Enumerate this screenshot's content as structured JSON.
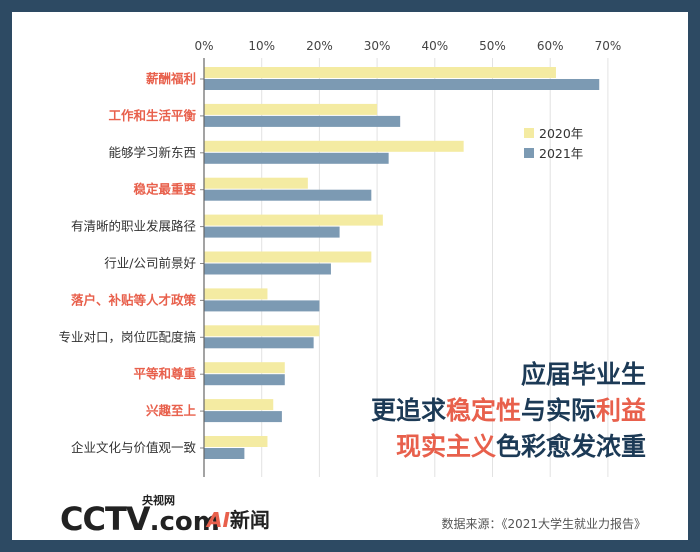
{
  "chart_data": {
    "type": "bar",
    "orientation": "horizontal",
    "categories": [
      "薪酬福利",
      "工作和生活平衡",
      "能够学习新东西",
      "稳定最重要",
      "有清晰的职业发展路径",
      "行业/公司前景好",
      "落户、补贴等人才政策",
      "专业对口，岗位匹配度搞",
      "平等和尊重",
      "兴趣至上",
      "企业文化与价值观一致"
    ],
    "highlighted_categories": [
      "薪酬福利",
      "工作和生活平衡",
      "稳定最重要",
      "落户、补贴等人才政策",
      "平等和尊重",
      "兴趣至上"
    ],
    "series": [
      {
        "name": "2020年",
        "color": "#f4eba2",
        "values": [
          61,
          30,
          45,
          18,
          31,
          29,
          11,
          20,
          14,
          12,
          11
        ]
      },
      {
        "name": "2021年",
        "color": "#7c9ab3",
        "values": [
          68.5,
          34,
          32,
          29,
          23.5,
          22,
          20,
          19,
          14,
          13.5,
          7
        ]
      }
    ],
    "x_ticks": [
      "0%",
      "10%",
      "20%",
      "30%",
      "40%",
      "50%",
      "60%",
      "70%"
    ],
    "xlim": [
      0,
      70
    ],
    "grid": true,
    "legend_position": "right, inside plot"
  },
  "headline": {
    "line1": "应届毕业生",
    "line2_a": "更追求",
    "line2_b": "稳定性",
    "line2_c": "与实际",
    "line2_d": "利益",
    "line3_a": "现实主义",
    "line3_b": "色彩愈发浓重"
  },
  "source": "数据来源：《2021大学生就业力报告》",
  "logos": {
    "cctv": "CCTV",
    "cctv_com": ".com",
    "cctv_cn": "央视网",
    "ai_a": "AI",
    "ai_text": "新闻"
  },
  "colors": {
    "frame": "#2d4a63",
    "highlight": "#e8604c",
    "label": "#333333",
    "grid": "#e2e2e2"
  }
}
